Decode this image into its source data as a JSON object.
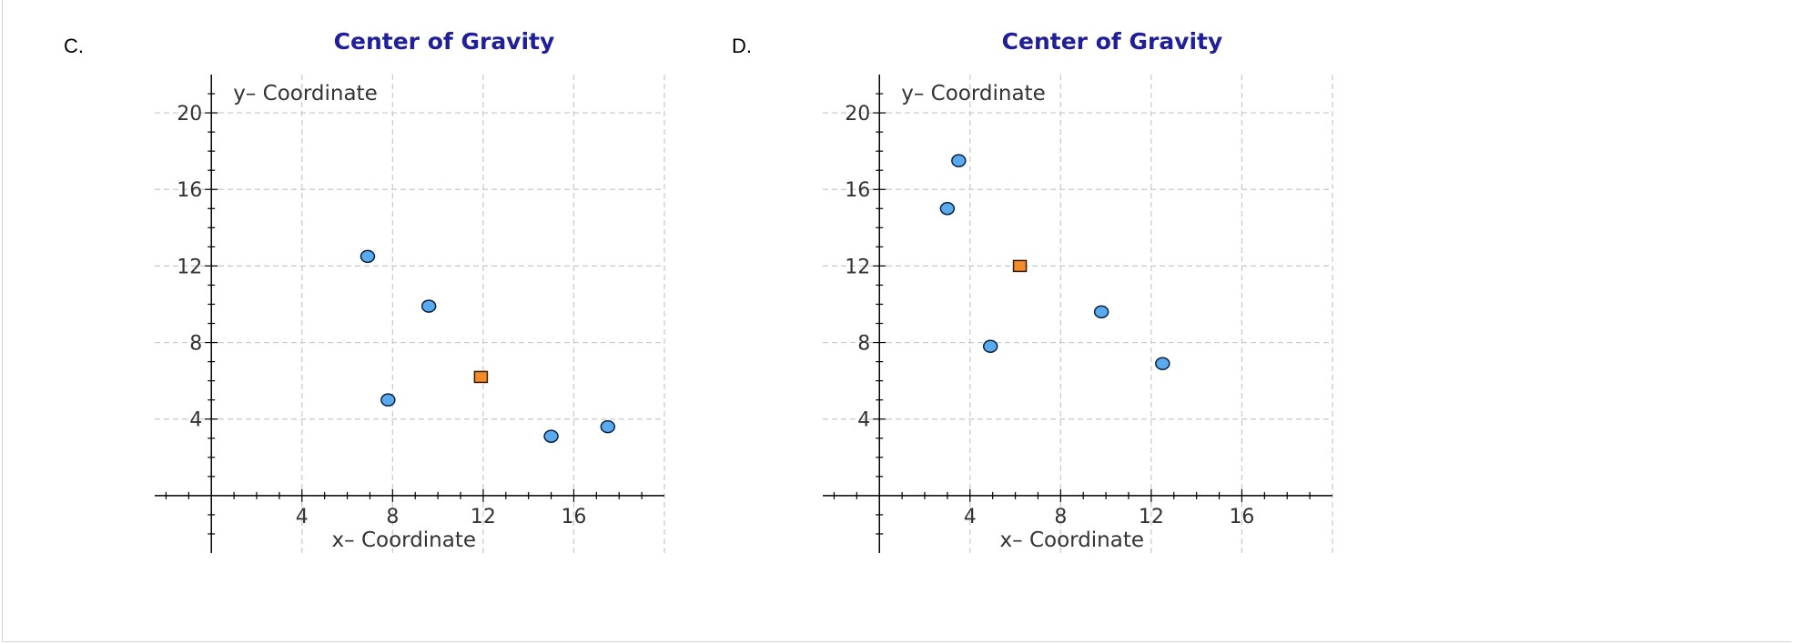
{
  "colors": {
    "title": "#1f1f99",
    "axis": "#000000",
    "grid": "#c8c8c8",
    "tick_text": "#333333",
    "point_fill": "#5aaaf0",
    "point_stroke": "#0a2040",
    "center_fill": "#f28c28",
    "center_stroke": "#3a1a00"
  },
  "charts": [
    {
      "option_label": "C.",
      "chart_data": {
        "type": "scatter",
        "title": "Center of Gravity",
        "xlabel": "x– Coordinate",
        "ylabel": "y– Coordinate",
        "xlim": [
          -2.5,
          20
        ],
        "ylim": [
          -3,
          22
        ],
        "xticks": [
          4,
          8,
          12,
          16
        ],
        "yticks": [
          4,
          8,
          12,
          16,
          20
        ],
        "grid": true,
        "series": [
          {
            "name": "points",
            "marker": "circle",
            "x": [
              6.9,
              9.6,
              7.8,
              15.0,
              17.5
            ],
            "y": [
              12.5,
              9.9,
              5.0,
              3.1,
              3.6
            ]
          },
          {
            "name": "center",
            "marker": "square",
            "x": [
              11.9
            ],
            "y": [
              6.2
            ]
          }
        ]
      }
    },
    {
      "option_label": "D.",
      "chart_data": {
        "type": "scatter",
        "title": "Center of Gravity",
        "xlabel": "x– Coordinate",
        "ylabel": "y– Coordinate",
        "xlim": [
          -2.5,
          20
        ],
        "ylim": [
          -3,
          22
        ],
        "xticks": [
          4,
          8,
          12,
          16
        ],
        "yticks": [
          4,
          8,
          12,
          16,
          20
        ],
        "grid": true,
        "series": [
          {
            "name": "points",
            "marker": "circle",
            "x": [
              3.5,
              3.0,
              4.9,
              9.8,
              12.5
            ],
            "y": [
              17.5,
              15.0,
              7.8,
              9.6,
              6.9
            ]
          },
          {
            "name": "center",
            "marker": "square",
            "x": [
              6.2
            ],
            "y": [
              12.0
            ]
          }
        ]
      }
    }
  ]
}
